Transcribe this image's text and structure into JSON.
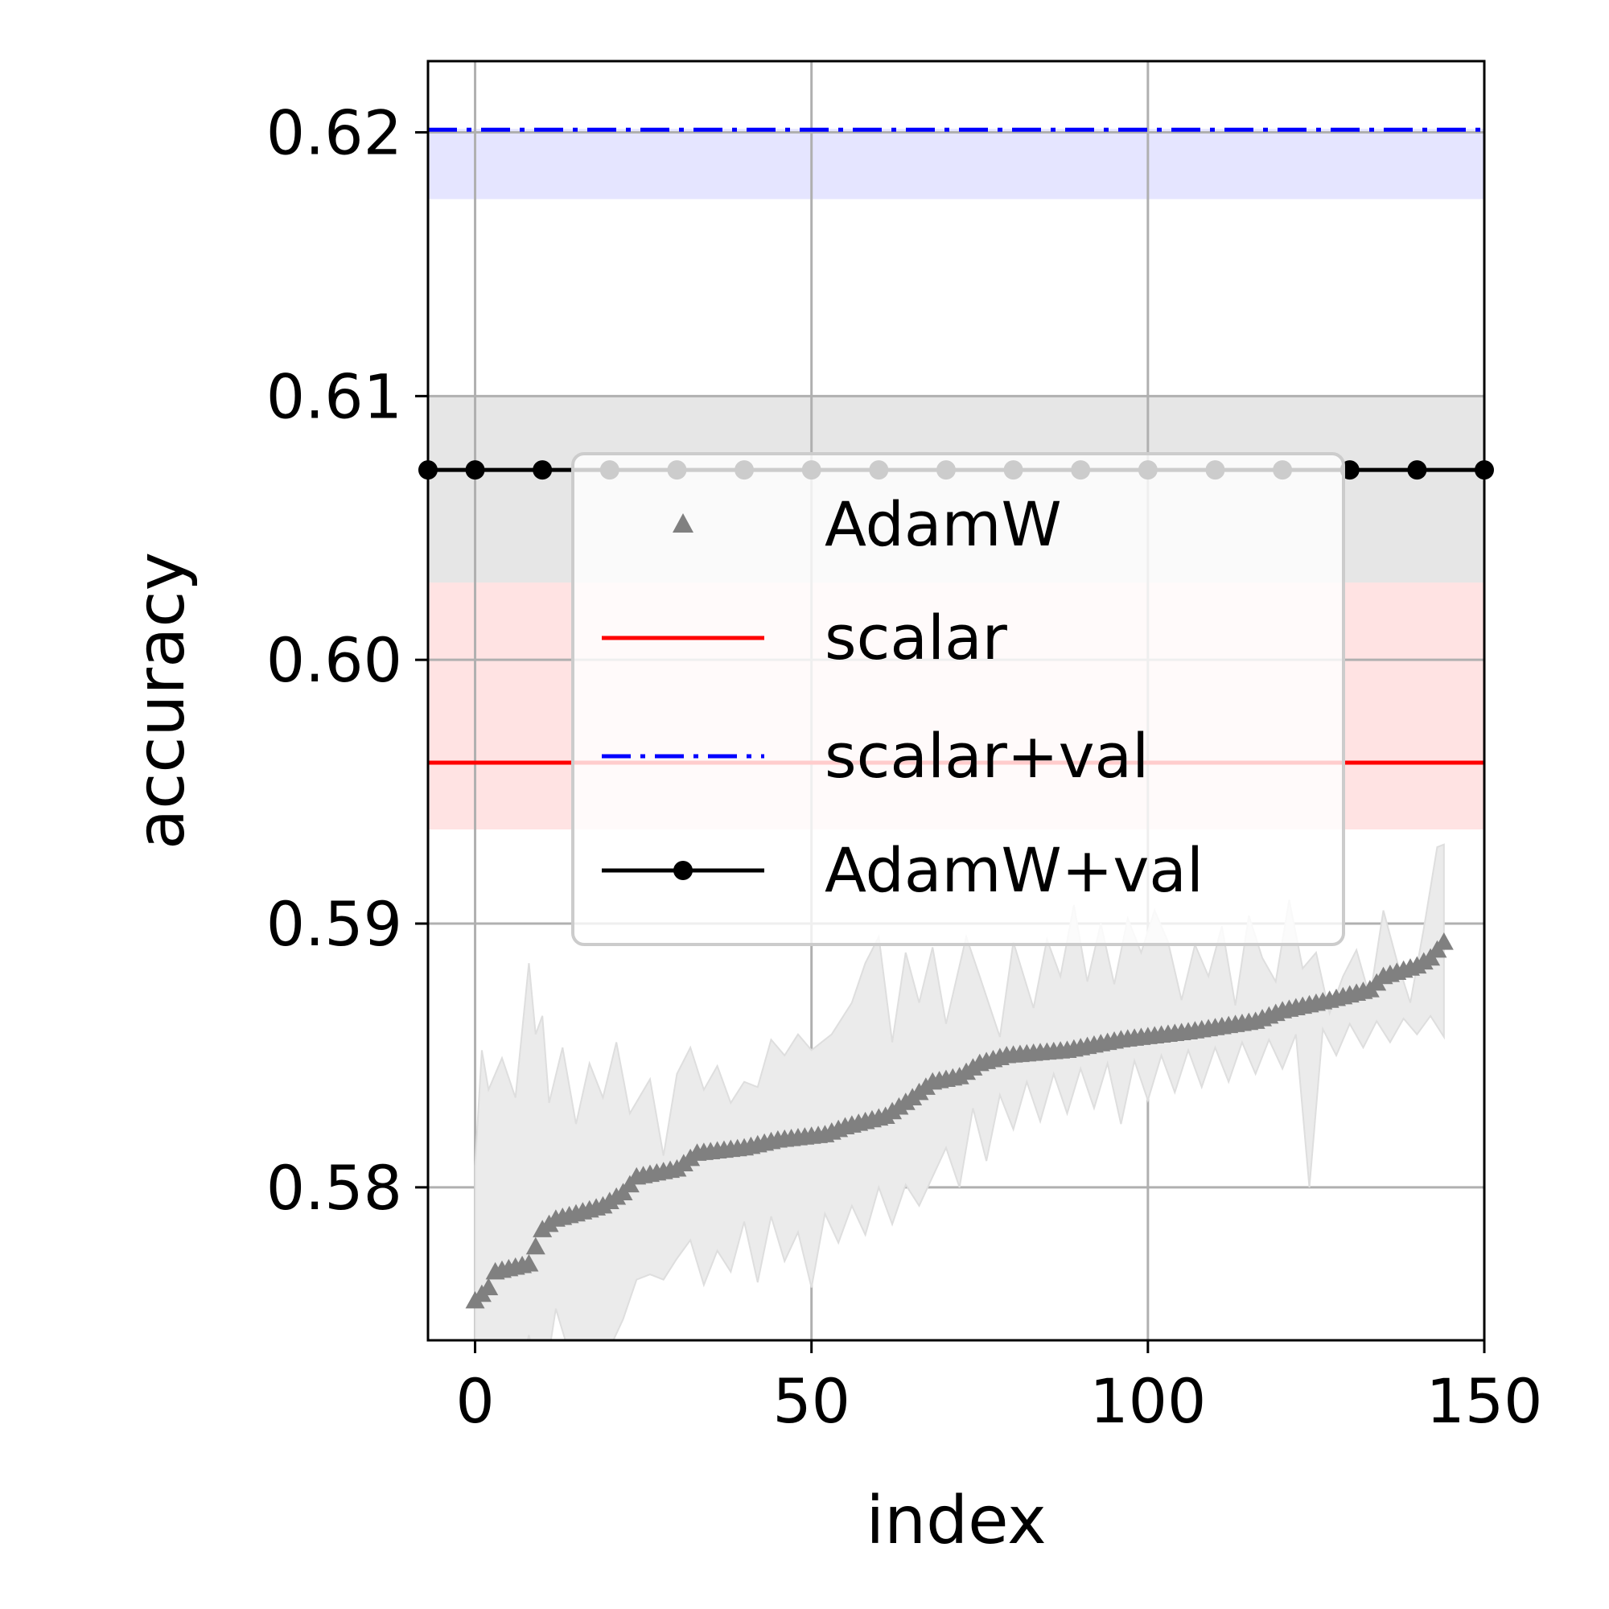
{
  "chart_data": {
    "type": "line",
    "xlabel": "index",
    "ylabel": "accuracy",
    "xlim": [
      -7,
      150
    ],
    "ylim": [
      0.5742,
      0.6227
    ],
    "xticks": [
      0,
      50,
      100,
      150
    ],
    "xtick_labels": [
      "0",
      "50",
      "100",
      "150"
    ],
    "yticks": [
      0.58,
      0.59,
      0.6,
      0.61,
      0.62
    ],
    "ytick_labels": [
      "0.58",
      "0.59",
      "0.60",
      "0.61",
      "0.62"
    ],
    "grid": true,
    "legend_position": "center",
    "legend": [
      {
        "label": "AdamW",
        "style": "triangle-markers",
        "color": "#808080"
      },
      {
        "label": "scalar",
        "style": "solid",
        "color": "#ff0000"
      },
      {
        "label": "scalar+val",
        "style": "dashdot",
        "color": "#0000ff"
      },
      {
        "label": "AdamW+val",
        "style": "solid-dots",
        "color": "#000000"
      }
    ],
    "horizontal_series": [
      {
        "name": "scalar+val",
        "value": 0.6201,
        "band": [
          0.6175,
          0.6201
        ],
        "color": "#0000ff",
        "band_color": "#e5e5ff"
      },
      {
        "name": "AdamW+val",
        "value": 0.6072,
        "band": [
          0.6029,
          0.61
        ],
        "color": "#000000",
        "band_color": "#e6e6e6"
      },
      {
        "name": "scalar",
        "value": 0.5961,
        "band": [
          0.5936,
          0.6029
        ],
        "color": "#ff0000",
        "band_color": "#ffe3e3"
      }
    ],
    "adamw_val_marker_x": [
      -7,
      0,
      10,
      20,
      30,
      40,
      50,
      60,
      70,
      80,
      90,
      100,
      110,
      120,
      130,
      140,
      150
    ],
    "adamw_sorted": {
      "name": "AdamW",
      "x_start": 0,
      "x_end": 144,
      "keypoints": [
        [
          0,
          0.5757
        ],
        [
          2,
          0.5762
        ],
        [
          3,
          0.5768
        ],
        [
          8,
          0.5771
        ],
        [
          10,
          0.5784
        ],
        [
          12,
          0.5788
        ],
        [
          15,
          0.579
        ],
        [
          19,
          0.5793
        ],
        [
          22,
          0.5798
        ],
        [
          24,
          0.5804
        ],
        [
          30,
          0.5807
        ],
        [
          33,
          0.5813
        ],
        [
          40,
          0.5815
        ],
        [
          45,
          0.5818
        ],
        [
          52,
          0.582
        ],
        [
          55,
          0.5823
        ],
        [
          61,
          0.5827
        ],
        [
          65,
          0.5834
        ],
        [
          68,
          0.584
        ],
        [
          72,
          0.5842
        ],
        [
          75,
          0.5847
        ],
        [
          79,
          0.585
        ],
        [
          88,
          0.5852
        ],
        [
          96,
          0.5856
        ],
        [
          106,
          0.5859
        ],
        [
          116,
          0.5863
        ],
        [
          120,
          0.5867
        ],
        [
          127,
          0.5871
        ],
        [
          133,
          0.5875
        ],
        [
          135,
          0.588
        ],
        [
          140,
          0.5884
        ],
        [
          142,
          0.5887
        ],
        [
          144,
          0.5893
        ]
      ],
      "band_upper": [
        [
          0,
          0.5808
        ],
        [
          1,
          0.5852
        ],
        [
          2,
          0.5837
        ],
        [
          4,
          0.5849
        ],
        [
          6,
          0.5834
        ],
        [
          8,
          0.5885
        ],
        [
          9,
          0.5858
        ],
        [
          10,
          0.5865
        ],
        [
          11,
          0.5832
        ],
        [
          13,
          0.5853
        ],
        [
          15,
          0.5824
        ],
        [
          17,
          0.5847
        ],
        [
          19,
          0.5834
        ],
        [
          21,
          0.5855
        ],
        [
          23,
          0.5828
        ],
        [
          26,
          0.5841
        ],
        [
          28,
          0.5812
        ],
        [
          30,
          0.5843
        ],
        [
          32,
          0.5853
        ],
        [
          34,
          0.5837
        ],
        [
          36,
          0.5846
        ],
        [
          38,
          0.5832
        ],
        [
          40,
          0.584
        ],
        [
          42,
          0.5838
        ],
        [
          44,
          0.5856
        ],
        [
          46,
          0.585
        ],
        [
          48,
          0.5858
        ],
        [
          50,
          0.5852
        ],
        [
          53,
          0.5858
        ],
        [
          56,
          0.587
        ],
        [
          58,
          0.5885
        ],
        [
          60,
          0.5895
        ],
        [
          62,
          0.5855
        ],
        [
          64,
          0.5889
        ],
        [
          66,
          0.587
        ],
        [
          68,
          0.5891
        ],
        [
          70,
          0.5862
        ],
        [
          73,
          0.5895
        ],
        [
          75,
          0.588
        ],
        [
          78,
          0.5857
        ],
        [
          80,
          0.5893
        ],
        [
          83,
          0.5868
        ],
        [
          85,
          0.5894
        ],
        [
          87,
          0.588
        ],
        [
          89,
          0.5907
        ],
        [
          91,
          0.5878
        ],
        [
          93,
          0.59
        ],
        [
          95,
          0.5877
        ],
        [
          97,
          0.5902
        ],
        [
          99,
          0.5889
        ],
        [
          101,
          0.5905
        ],
        [
          103,
          0.5893
        ],
        [
          105,
          0.5871
        ],
        [
          107,
          0.5892
        ],
        [
          109,
          0.588
        ],
        [
          111,
          0.5899
        ],
        [
          113,
          0.5869
        ],
        [
          115,
          0.5903
        ],
        [
          117,
          0.5887
        ],
        [
          119,
          0.5878
        ],
        [
          121,
          0.5909
        ],
        [
          123,
          0.5883
        ],
        [
          125,
          0.5889
        ],
        [
          127,
          0.5866
        ],
        [
          129,
          0.588
        ],
        [
          131,
          0.589
        ],
        [
          133,
          0.5872
        ],
        [
          135,
          0.5905
        ],
        [
          137,
          0.5886
        ],
        [
          139,
          0.587
        ],
        [
          141,
          0.5898
        ],
        [
          143,
          0.5929
        ],
        [
          144,
          0.593
        ]
      ],
      "band_lower": [
        [
          0,
          0.5722
        ],
        [
          2,
          0.5717
        ],
        [
          4,
          0.5735
        ],
        [
          6,
          0.5724
        ],
        [
          8,
          0.5744
        ],
        [
          10,
          0.5721
        ],
        [
          12,
          0.5754
        ],
        [
          14,
          0.5737
        ],
        [
          16,
          0.5742
        ],
        [
          18,
          0.5729
        ],
        [
          20,
          0.5739
        ],
        [
          22,
          0.575
        ],
        [
          24,
          0.5765
        ],
        [
          26,
          0.5767
        ],
        [
          28,
          0.5765
        ],
        [
          30,
          0.5773
        ],
        [
          32,
          0.578
        ],
        [
          34,
          0.5763
        ],
        [
          36,
          0.5776
        ],
        [
          38,
          0.5768
        ],
        [
          40,
          0.5787
        ],
        [
          42,
          0.5764
        ],
        [
          44,
          0.5789
        ],
        [
          46,
          0.5772
        ],
        [
          48,
          0.5783
        ],
        [
          50,
          0.5762
        ],
        [
          52,
          0.579
        ],
        [
          54,
          0.5779
        ],
        [
          56,
          0.5793
        ],
        [
          58,
          0.5782
        ],
        [
          60,
          0.58
        ],
        [
          62,
          0.5786
        ],
        [
          64,
          0.5801
        ],
        [
          66,
          0.5793
        ],
        [
          68,
          0.5804
        ],
        [
          70,
          0.5815
        ],
        [
          72,
          0.58
        ],
        [
          74,
          0.583
        ],
        [
          76,
          0.581
        ],
        [
          78,
          0.5835
        ],
        [
          80,
          0.5822
        ],
        [
          82,
          0.584
        ],
        [
          84,
          0.5825
        ],
        [
          86,
          0.5843
        ],
        [
          88,
          0.5828
        ],
        [
          90,
          0.5845
        ],
        [
          92,
          0.583
        ],
        [
          94,
          0.5847
        ],
        [
          96,
          0.5824
        ],
        [
          98,
          0.5848
        ],
        [
          100,
          0.5833
        ],
        [
          102,
          0.585
        ],
        [
          104,
          0.5836
        ],
        [
          106,
          0.5852
        ],
        [
          108,
          0.5838
        ],
        [
          110,
          0.5853
        ],
        [
          112,
          0.584
        ],
        [
          114,
          0.5855
        ],
        [
          116,
          0.5843
        ],
        [
          118,
          0.5856
        ],
        [
          120,
          0.5845
        ],
        [
          122,
          0.5858
        ],
        [
          124,
          0.58
        ],
        [
          126,
          0.586
        ],
        [
          128,
          0.585
        ],
        [
          130,
          0.5862
        ],
        [
          132,
          0.5853
        ],
        [
          134,
          0.5863
        ],
        [
          136,
          0.5855
        ],
        [
          138,
          0.5864
        ],
        [
          140,
          0.5858
        ],
        [
          142,
          0.5865
        ],
        [
          144,
          0.5857
        ]
      ]
    }
  }
}
